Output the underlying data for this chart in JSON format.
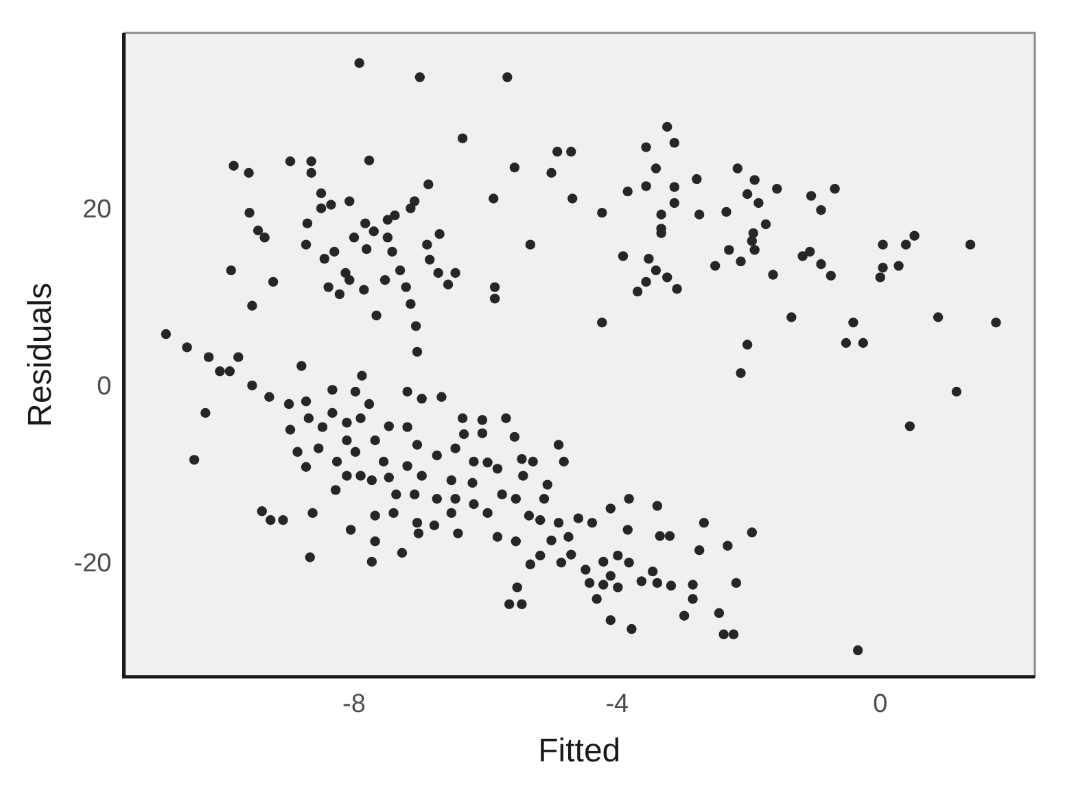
{
  "chart_data": {
    "type": "scatter",
    "xlabel": "Fitted",
    "ylabel": "Residuals",
    "xlim": [
      -11.5,
      2.35
    ],
    "ylim": [
      -32.7,
      40
    ],
    "xticks": [
      -8,
      -4,
      0
    ],
    "yticks": [
      -20,
      0,
      20
    ],
    "grid": false,
    "legend": false,
    "marker": "circle",
    "series": [
      {
        "color": "#262626",
        "x": [
          -7.92,
          -7.0,
          -5.67,
          -9.83,
          -9.6,
          -8.97,
          -8.65,
          -8.65,
          -7.77,
          -6.87,
          -6.35,
          -5.56,
          -4.91,
          -4.7,
          -9.59,
          -9.46,
          -9.36,
          -9.87,
          -9.23,
          -9.55,
          -8.5,
          -8.71,
          -8.73,
          -8.5,
          -8.35,
          -8.07,
          -8.0,
          -8.45,
          -8.3,
          -8.13,
          -8.07,
          -7.81,
          -7.83,
          -7.7,
          -7.49,
          -7.49,
          -7.85,
          -8.39,
          -8.22,
          -7.53,
          -7.42,
          -7.38,
          -7.14,
          -7.08,
          -7.3,
          -7.21,
          -7.14,
          -6.89,
          -6.85,
          -6.7,
          -6.72,
          -7.06,
          -7.04,
          -6.57,
          -6.46,
          -7.66,
          -5.86,
          -5.86,
          -5.88,
          -5.32,
          -5.0,
          -4.68,
          -4.23,
          -4.23,
          -3.24,
          -3.13,
          -3.56,
          -3.41,
          -3.56,
          -3.84,
          -3.13,
          -3.13,
          -2.79,
          -2.75,
          -3.33,
          -3.33,
          -3.33,
          -2.34,
          -2.17,
          -3.91,
          -3.52,
          -3.41,
          -3.56,
          -3.69,
          -3.24,
          -3.09,
          -2.51,
          -2.3,
          -1.91,
          -2.02,
          -1.85,
          -1.57,
          -1.74,
          -1.93,
          -1.95,
          -1.91,
          -2.12,
          -1.63,
          -1.05,
          -0.9,
          -0.69,
          -1.18,
          -1.07,
          -0.9,
          -0.75,
          -1.35,
          -2.02,
          -0.52,
          -0.26,
          -0.41,
          0.04,
          0.39,
          0.52,
          0.04,
          0.0,
          0.28,
          1.37,
          0.88,
          1.76,
          -2.12,
          1.16,
          0.45,
          -0.34,
          -1.95,
          -2.32,
          -2.19,
          -2.23,
          -2.38,
          -10.86,
          -10.54,
          -10.21,
          -10.04,
          -9.89,
          -9.76,
          -10.26,
          -10.43,
          -9.55,
          -9.29,
          -8.99,
          -8.73,
          -8.8,
          -8.33,
          -7.88,
          -7.98,
          -8.69,
          -8.97,
          -8.86,
          -8.73,
          -8.54,
          -8.33,
          -8.48,
          -8.11,
          -7.9,
          -7.77,
          -8.11,
          -7.98,
          -8.26,
          -8.11,
          -7.9,
          -7.68,
          -7.47,
          -7.73,
          -7.55,
          -7.47,
          -7.19,
          -6.97,
          -7.19,
          -7.04,
          -7.19,
          -6.97,
          -7.36,
          -7.4,
          -7.08,
          -7.04,
          -7.02,
          -8.28,
          -9.4,
          -9.08,
          -9.27,
          -8.63,
          -8.05,
          -7.68,
          -7.68,
          -7.73,
          -7.27,
          -8.67,
          -6.67,
          -6.35,
          -6.05,
          -6.05,
          -5.69,
          -5.56,
          -4.89,
          -4.81,
          -6.33,
          -6.74,
          -6.46,
          -6.18,
          -5.97,
          -5.82,
          -5.45,
          -5.28,
          -6.52,
          -6.2,
          -5.43,
          -5.06,
          -5.75,
          -5.54,
          -5.11,
          -6.74,
          -6.46,
          -6.18,
          -5.97,
          -6.52,
          -6.78,
          -6.42,
          -5.82,
          -5.54,
          -5.34,
          -5.17,
          -4.89,
          -4.59,
          -4.38,
          -5.0,
          -4.74,
          -4.7,
          -4.85,
          -5.17,
          -5.32,
          -4.48,
          -4.1,
          -3.82,
          -3.84,
          -3.39,
          -3.35,
          -3.2,
          -2.68,
          -2.75,
          -3.99,
          -4.21,
          -3.82,
          -4.42,
          -4.21,
          -3.99,
          -4.31,
          -4.1,
          -3.63,
          -3.46,
          -3.39,
          -3.18,
          -2.85,
          -2.85,
          -2.98,
          -4.1,
          -3.78,
          -2.45,
          -5.52,
          -5.64,
          -5.45
        ],
        "values": [
          36.6,
          35.0,
          35.0,
          25.0,
          24.2,
          25.5,
          25.5,
          24.2,
          25.6,
          22.9,
          28.1,
          24.8,
          26.6,
          26.6,
          19.7,
          17.7,
          16.9,
          13.2,
          11.9,
          9.2,
          21.9,
          18.5,
          16.1,
          20.2,
          20.6,
          21.0,
          16.9,
          14.5,
          15.3,
          12.9,
          12.1,
          15.6,
          18.5,
          17.6,
          18.9,
          16.9,
          11.0,
          11.3,
          10.5,
          12.1,
          15.3,
          19.4,
          20.2,
          21.0,
          13.2,
          11.3,
          9.4,
          16.1,
          14.4,
          17.3,
          12.9,
          6.9,
          4.0,
          11.6,
          12.9,
          8.1,
          11.3,
          10.0,
          21.3,
          16.1,
          24.2,
          21.3,
          19.7,
          7.3,
          29.4,
          27.6,
          27.1,
          24.7,
          22.7,
          22.1,
          22.6,
          20.8,
          23.5,
          19.5,
          19.5,
          17.9,
          17.4,
          19.8,
          24.7,
          14.8,
          14.5,
          13.2,
          11.9,
          10.8,
          12.4,
          11.1,
          13.7,
          15.5,
          23.4,
          21.8,
          20.8,
          22.4,
          18.4,
          17.4,
          16.5,
          15.5,
          14.2,
          12.7,
          21.6,
          20.0,
          22.4,
          14.8,
          15.3,
          13.9,
          12.6,
          7.9,
          4.8,
          5.0,
          5.0,
          7.3,
          16.1,
          16.1,
          17.1,
          13.5,
          12.4,
          13.7,
          16.1,
          7.9,
          7.3,
          1.6,
          -0.5,
          -4.4,
          -29.7,
          -16.4,
          -17.9,
          -22.1,
          -27.9,
          -27.9,
          6.0,
          4.5,
          3.4,
          1.8,
          1.8,
          3.4,
          -2.9,
          -8.2,
          0.2,
          -1.1,
          -1.9,
          -1.6,
          2.4,
          -0.3,
          1.3,
          -0.5,
          -3.5,
          -4.8,
          -7.3,
          -9.0,
          -6.9,
          -2.9,
          -4.5,
          -4.0,
          -3.5,
          -1.9,
          -6.0,
          -7.3,
          -8.4,
          -10.0,
          -10.0,
          -6.0,
          -4.4,
          -10.5,
          -8.4,
          -10.2,
          -0.5,
          -1.3,
          -4.5,
          -6.5,
          -8.9,
          -10.0,
          -12.1,
          -14.2,
          -12.1,
          -15.3,
          -16.5,
          -11.6,
          -14.0,
          -15.0,
          -15.0,
          -14.2,
          -16.1,
          -14.5,
          -17.4,
          -19.7,
          -18.7,
          -19.2,
          -1.1,
          -3.5,
          -3.7,
          -5.2,
          -3.5,
          -5.6,
          -6.5,
          -8.4,
          -5.3,
          -7.7,
          -6.9,
          -8.4,
          -8.5,
          -9.2,
          -8.1,
          -8.4,
          -10.5,
          -10.8,
          -10.0,
          -11.0,
          -12.1,
          -12.6,
          -12.6,
          -12.6,
          -12.6,
          -13.2,
          -14.2,
          -14.2,
          -15.6,
          -16.5,
          -16.9,
          -17.4,
          -14.5,
          -15.0,
          -15.3,
          -14.8,
          -15.3,
          -17.3,
          -16.9,
          -18.9,
          -19.8,
          -19.0,
          -20.0,
          -20.6,
          -13.7,
          -12.6,
          -16.1,
          -13.4,
          -16.8,
          -16.8,
          -15.3,
          -18.4,
          -19.0,
          -19.7,
          -19.8,
          -22.1,
          -22.3,
          -22.6,
          -23.9,
          -21.3,
          -21.9,
          -20.8,
          -22.1,
          -22.4,
          -22.3,
          -23.9,
          -25.8,
          -26.3,
          -27.3,
          -25.5,
          -22.6,
          -24.5,
          -24.5
        ]
      }
    ]
  }
}
